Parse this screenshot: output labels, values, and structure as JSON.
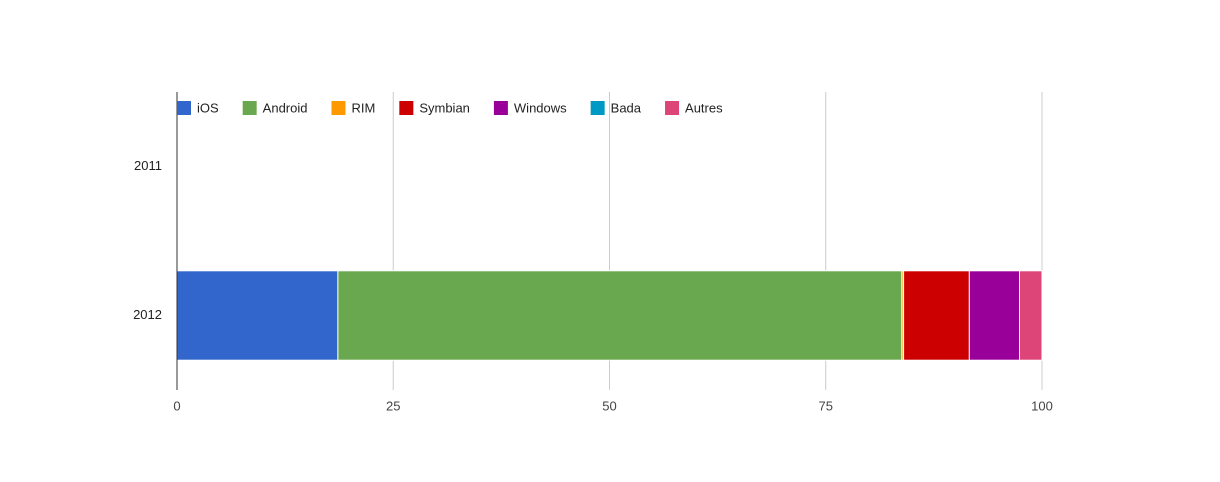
{
  "chart_data": {
    "type": "stacked-bar-horizontal",
    "categories": [
      "2011",
      "2012"
    ],
    "series": [
      {
        "name": "iOS",
        "color": "#3366cc",
        "values": [
          null,
          18.6
        ]
      },
      {
        "name": "Android",
        "color": "#6aa84f",
        "values": [
          null,
          65.2
        ]
      },
      {
        "name": "RIM",
        "color": "#ff9900",
        "values": [
          null,
          0.2
        ]
      },
      {
        "name": "Symbian",
        "color": "#cc0000",
        "values": [
          null,
          7.6
        ]
      },
      {
        "name": "Windows",
        "color": "#990099",
        "values": [
          null,
          5.8
        ]
      },
      {
        "name": "Bada",
        "color": "#0099c6",
        "values": [
          null,
          0
        ]
      },
      {
        "name": "Autres",
        "color": "#dd4477",
        "values": [
          null,
          2.6
        ]
      }
    ],
    "xlim": [
      0,
      100
    ],
    "xticks": [
      0,
      25,
      50,
      75,
      100
    ],
    "grid": true,
    "legend": "top"
  }
}
